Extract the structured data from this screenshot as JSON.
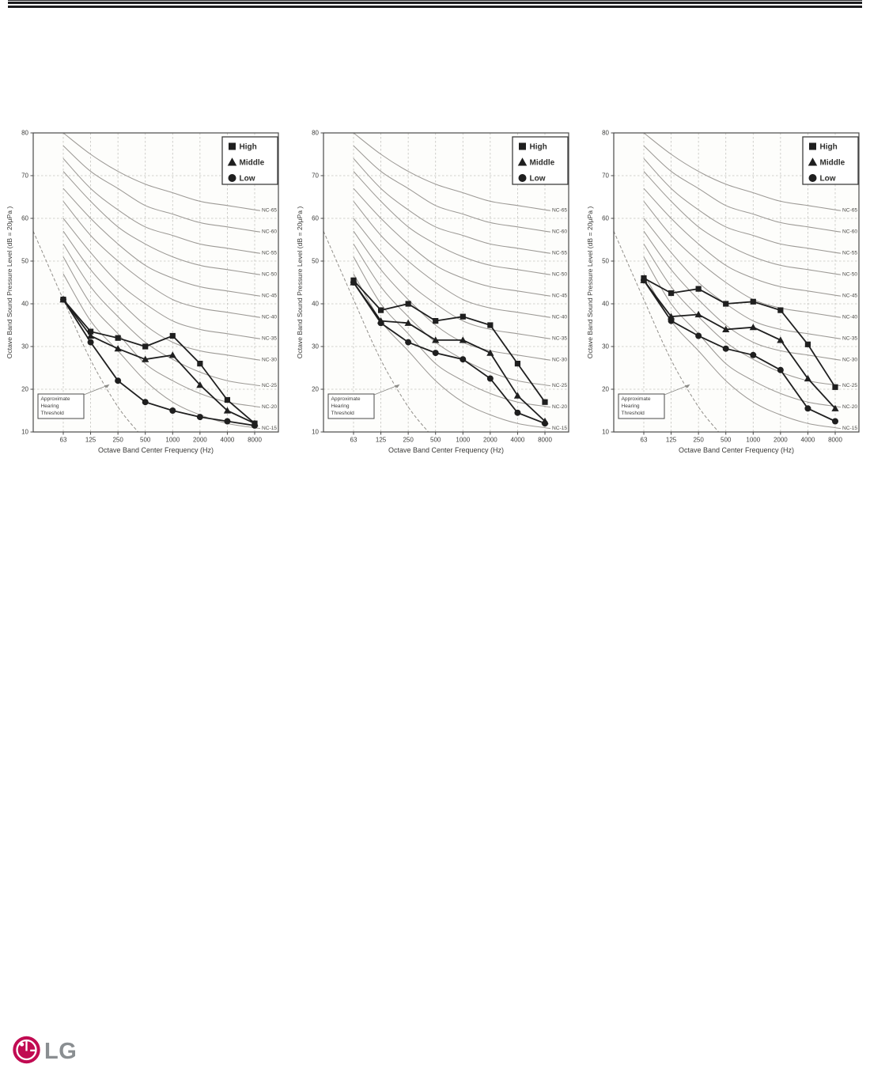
{
  "footer": {
    "logo_text": "LG",
    "logo_circle_color": "#c10b52",
    "logo_text_color": "#8a8e91"
  },
  "chart_data": [
    {
      "type": "line",
      "id": "left",
      "title": "",
      "xlabel": "Octave Band Center Frequency (Hz)",
      "ylabel": "Octave Band Sound Pressure Level (dB = 20µPa )",
      "categories": [
        63,
        125,
        250,
        500,
        1000,
        2000,
        4000,
        8000
      ],
      "ylim": [
        10,
        80
      ],
      "yticks": [
        10,
        20,
        30,
        40,
        50,
        60,
        70,
        80
      ],
      "grid": true,
      "legend_position": "top-right",
      "series": [
        {
          "name": "High",
          "marker": "square",
          "values": [
            41,
            33.5,
            32,
            30,
            32.5,
            26,
            17.5,
            12
          ]
        },
        {
          "name": "Middle",
          "marker": "triangle",
          "values": [
            41,
            32.5,
            29.5,
            27,
            28,
            21,
            15,
            12
          ]
        },
        {
          "name": "Low",
          "marker": "circle",
          "values": [
            41,
            31,
            22,
            17,
            15,
            13.5,
            12.5,
            11.5
          ]
        }
      ]
    },
    {
      "type": "line",
      "id": "middle",
      "title": "",
      "xlabel": "Octave Band Center Frequency (Hz)",
      "ylabel": "Octave Band Sound Pressure Level (dB = 20µPa )",
      "categories": [
        63,
        125,
        250,
        500,
        1000,
        2000,
        4000,
        8000
      ],
      "ylim": [
        10,
        80
      ],
      "yticks": [
        10,
        20,
        30,
        40,
        50,
        60,
        70,
        80
      ],
      "grid": true,
      "legend_position": "top-right",
      "series": [
        {
          "name": "High",
          "marker": "square",
          "values": [
            45.5,
            38.5,
            40,
            36,
            37,
            35,
            26,
            17
          ]
        },
        {
          "name": "Middle",
          "marker": "triangle",
          "values": [
            45,
            36,
            35.5,
            31.5,
            31.5,
            28.5,
            18.5,
            12.5
          ]
        },
        {
          "name": "Low",
          "marker": "circle",
          "values": [
            45,
            35.5,
            31,
            28.5,
            27,
            22.5,
            14.5,
            12
          ]
        }
      ]
    },
    {
      "type": "line",
      "id": "right",
      "title": "",
      "xlabel": "Octave Band Center Frequency (Hz)",
      "ylabel": "Octave Band Sound Pressure Level (dB = 20µPa )",
      "categories": [
        63,
        125,
        250,
        500,
        1000,
        2000,
        4000,
        8000
      ],
      "ylim": [
        10,
        80
      ],
      "yticks": [
        10,
        20,
        30,
        40,
        50,
        60,
        70,
        80
      ],
      "grid": true,
      "legend_position": "top-right",
      "series": [
        {
          "name": "High",
          "marker": "square",
          "values": [
            46,
            42.5,
            43.5,
            40,
            40.5,
            38.5,
            30.5,
            20.5
          ]
        },
        {
          "name": "Middle",
          "marker": "triangle",
          "values": [
            45.5,
            37,
            37.5,
            34,
            34.5,
            31.5,
            22.5,
            15.5
          ]
        },
        {
          "name": "Low",
          "marker": "circle",
          "values": [
            45.5,
            36,
            32.5,
            29.5,
            28,
            24.5,
            15.5,
            12.5
          ]
        }
      ]
    }
  ],
  "nc_reference_curves": {
    "labels": [
      "NC-65",
      "NC-60",
      "NC-55",
      "NC-50",
      "NC-45",
      "NC-40",
      "NC-35",
      "NC-30",
      "NC-25",
      "NC-20",
      "NC-15"
    ],
    "values": {
      "NC-65": [
        80,
        75,
        71,
        68,
        66,
        64,
        63,
        62
      ],
      "NC-60": [
        77,
        71,
        67,
        63,
        61,
        59,
        58,
        57
      ],
      "NC-55": [
        74,
        67,
        62,
        58,
        56,
        54,
        53,
        52
      ],
      "NC-50": [
        71,
        64,
        58,
        54,
        51,
        49,
        48,
        47
      ],
      "NC-45": [
        67,
        60,
        54,
        49,
        46,
        44,
        43,
        42
      ],
      "NC-40": [
        64,
        56,
        50,
        45,
        41,
        39,
        38,
        37
      ],
      "NC-35": [
        60,
        52,
        45,
        40,
        36,
        34,
        33,
        32
      ],
      "NC-30": [
        57,
        48,
        41,
        35,
        31,
        29,
        28,
        27
      ],
      "NC-25": [
        54,
        44,
        37,
        31,
        27,
        24,
        22,
        21
      ],
      "NC-20": [
        51,
        40,
        33,
        26,
        22,
        19,
        17,
        16
      ],
      "NC-15": [
        47,
        36,
        29,
        22,
        17,
        14,
        12,
        11
      ]
    }
  },
  "hearing_threshold": {
    "label_lines": [
      "Approximate",
      "Hearing",
      "Threshold"
    ],
    "points_freq_db": [
      [
        29,
        57
      ],
      [
        63,
        41
      ],
      [
        125,
        27
      ],
      [
        250,
        16
      ],
      [
        420,
        10
      ]
    ]
  }
}
